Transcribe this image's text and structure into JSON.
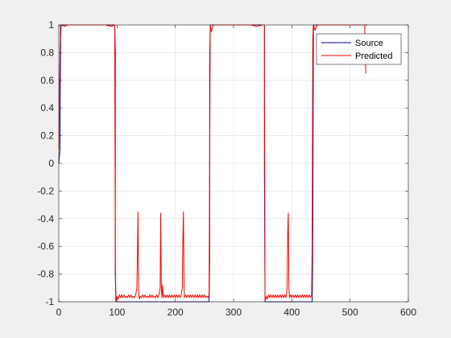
{
  "chart_data": {
    "type": "line",
    "title": "",
    "xlabel": "",
    "ylabel": "",
    "xlim": [
      0,
      600
    ],
    "ylim": [
      -1,
      1
    ],
    "x_ticks": [
      0,
      100,
      200,
      300,
      400,
      500,
      600
    ],
    "y_ticks": [
      -1,
      -0.8,
      -0.6,
      -0.4,
      -0.2,
      0,
      0.2,
      0.4,
      0.6,
      0.8,
      1
    ],
    "x_tick_labels": [
      "0",
      "100",
      "200",
      "300",
      "400",
      "500",
      "600"
    ],
    "y_tick_labels": [
      "-1",
      "-0.8",
      "-0.6",
      "-0.4",
      "-0.2",
      "0",
      "0.2",
      "0.4",
      "0.6",
      "0.8",
      "1"
    ],
    "grid": true,
    "legend_position": "top-right",
    "series": [
      {
        "name": "Source",
        "color": "#00008b",
        "points": [
          [
            0,
            0.0
          ],
          [
            2,
            0.1
          ],
          [
            3,
            0.9
          ],
          [
            4,
            1.0
          ],
          [
            96,
            1.0
          ],
          [
            97,
            0.8
          ],
          [
            97,
            -0.8
          ],
          [
            98,
            -1.0
          ],
          [
            258,
            -1.0
          ],
          [
            259,
            -0.7
          ],
          [
            259,
            0.7
          ],
          [
            260,
            1.0
          ],
          [
            353,
            1.0
          ],
          [
            353,
            -0.05
          ],
          [
            354,
            -1.0
          ],
          [
            435,
            -1.0
          ],
          [
            436,
            -0.5
          ],
          [
            437,
            0.95
          ],
          [
            438,
            1.0
          ],
          [
            530,
            1.0
          ]
        ]
      },
      {
        "name": "Predicted",
        "color": "#ff0000",
        "points": [
          [
            0,
            0.1
          ],
          [
            2,
            0.8
          ],
          [
            3,
            1.0
          ],
          [
            4,
            1.0
          ],
          [
            10,
            0.99
          ],
          [
            15,
            1.0
          ],
          [
            60,
            1.0
          ],
          [
            80,
            1.0
          ],
          [
            90,
            0.99
          ],
          [
            96,
            1.0
          ],
          [
            97,
            -0.7
          ],
          [
            98,
            -1.0
          ],
          [
            100,
            -0.96
          ],
          [
            102,
            -0.98
          ],
          [
            104,
            -0.95
          ],
          [
            106,
            -0.97
          ],
          [
            108,
            -0.95
          ],
          [
            110,
            -0.97
          ],
          [
            112,
            -0.95
          ],
          [
            114,
            -0.97
          ],
          [
            116,
            -0.96
          ],
          [
            118,
            -0.97
          ],
          [
            120,
            -0.95
          ],
          [
            122,
            -0.97
          ],
          [
            124,
            -0.95
          ],
          [
            126,
            -0.97
          ],
          [
            128,
            -0.96
          ],
          [
            130,
            -0.97
          ],
          [
            132,
            -0.95
          ],
          [
            134,
            -0.9
          ],
          [
            135,
            -0.66
          ],
          [
            136,
            -0.35
          ],
          [
            137,
            -0.9
          ],
          [
            138,
            -0.98
          ],
          [
            140,
            -0.96
          ],
          [
            142,
            -0.97
          ],
          [
            144,
            -0.95
          ],
          [
            146,
            -0.97
          ],
          [
            148,
            -0.95
          ],
          [
            150,
            -0.97
          ],
          [
            152,
            -0.96
          ],
          [
            154,
            -0.97
          ],
          [
            156,
            -0.95
          ],
          [
            158,
            -0.97
          ],
          [
            160,
            -0.95
          ],
          [
            162,
            -0.97
          ],
          [
            164,
            -0.96
          ],
          [
            166,
            -0.97
          ],
          [
            168,
            -0.95
          ],
          [
            170,
            -0.97
          ],
          [
            172,
            -0.95
          ],
          [
            174,
            -0.9
          ],
          [
            175,
            -0.36
          ],
          [
            176,
            -0.9
          ],
          [
            177,
            -0.97
          ],
          [
            178,
            -0.88
          ],
          [
            179,
            -0.95
          ],
          [
            180,
            -0.97
          ],
          [
            182,
            -0.95
          ],
          [
            184,
            -0.97
          ],
          [
            186,
            -0.95
          ],
          [
            188,
            -0.97
          ],
          [
            190,
            -0.95
          ],
          [
            192,
            -0.97
          ],
          [
            194,
            -0.95
          ],
          [
            196,
            -0.97
          ],
          [
            198,
            -0.95
          ],
          [
            200,
            -0.97
          ],
          [
            202,
            -0.95
          ],
          [
            204,
            -0.97
          ],
          [
            206,
            -0.95
          ],
          [
            208,
            -0.97
          ],
          [
            210,
            -0.95
          ],
          [
            212,
            -0.9
          ],
          [
            213,
            -0.55
          ],
          [
            214,
            -0.35
          ],
          [
            215,
            -0.9
          ],
          [
            216,
            -0.97
          ],
          [
            218,
            -0.95
          ],
          [
            220,
            -0.97
          ],
          [
            222,
            -0.95
          ],
          [
            224,
            -0.97
          ],
          [
            226,
            -0.95
          ],
          [
            228,
            -0.97
          ],
          [
            230,
            -0.95
          ],
          [
            232,
            -0.97
          ],
          [
            234,
            -0.95
          ],
          [
            236,
            -0.97
          ],
          [
            238,
            -0.95
          ],
          [
            240,
            -0.97
          ],
          [
            242,
            -0.95
          ],
          [
            244,
            -0.97
          ],
          [
            246,
            -0.95
          ],
          [
            248,
            -0.97
          ],
          [
            250,
            -0.95
          ],
          [
            252,
            -0.97
          ],
          [
            254,
            -0.96
          ],
          [
            256,
            -0.97
          ],
          [
            258,
            -0.95
          ],
          [
            259,
            0.0
          ],
          [
            260,
            1.0
          ],
          [
            262,
            0.95
          ],
          [
            264,
            0.99
          ],
          [
            266,
            1.0
          ],
          [
            300,
            1.0
          ],
          [
            330,
            1.0
          ],
          [
            340,
            0.99
          ],
          [
            350,
            1.0
          ],
          [
            353,
            1.0
          ],
          [
            354,
            -1.0
          ],
          [
            356,
            -0.96
          ],
          [
            358,
            -0.98
          ],
          [
            360,
            -0.95
          ],
          [
            362,
            -0.97
          ],
          [
            364,
            -0.95
          ],
          [
            366,
            -0.97
          ],
          [
            368,
            -0.95
          ],
          [
            370,
            -0.97
          ],
          [
            372,
            -0.95
          ],
          [
            374,
            -0.97
          ],
          [
            376,
            -0.95
          ],
          [
            378,
            -0.97
          ],
          [
            380,
            -0.95
          ],
          [
            382,
            -0.97
          ],
          [
            384,
            -0.95
          ],
          [
            386,
            -0.97
          ],
          [
            388,
            -0.95
          ],
          [
            390,
            -0.97
          ],
          [
            392,
            -0.9
          ],
          [
            393,
            -0.5
          ],
          [
            394,
            -0.36
          ],
          [
            395,
            -0.9
          ],
          [
            396,
            -0.97
          ],
          [
            398,
            -0.95
          ],
          [
            400,
            -0.97
          ],
          [
            402,
            -0.95
          ],
          [
            404,
            -0.97
          ],
          [
            406,
            -0.95
          ],
          [
            408,
            -0.97
          ],
          [
            410,
            -0.95
          ],
          [
            412,
            -0.97
          ],
          [
            414,
            -0.95
          ],
          [
            416,
            -0.97
          ],
          [
            418,
            -0.95
          ],
          [
            420,
            -0.97
          ],
          [
            422,
            -0.95
          ],
          [
            424,
            -0.97
          ],
          [
            426,
            -0.95
          ],
          [
            428,
            -0.97
          ],
          [
            430,
            -0.95
          ],
          [
            432,
            -0.97
          ],
          [
            434,
            -0.95
          ],
          [
            435,
            -0.6
          ],
          [
            436,
            0.9
          ],
          [
            437,
            1.0
          ],
          [
            440,
            0.96
          ],
          [
            442,
            0.99
          ],
          [
            444,
            1.0
          ],
          [
            480,
            1.0
          ],
          [
            500,
            1.0
          ],
          [
            525,
            1.0
          ],
          [
            527,
            0.65
          ]
        ]
      }
    ]
  }
}
